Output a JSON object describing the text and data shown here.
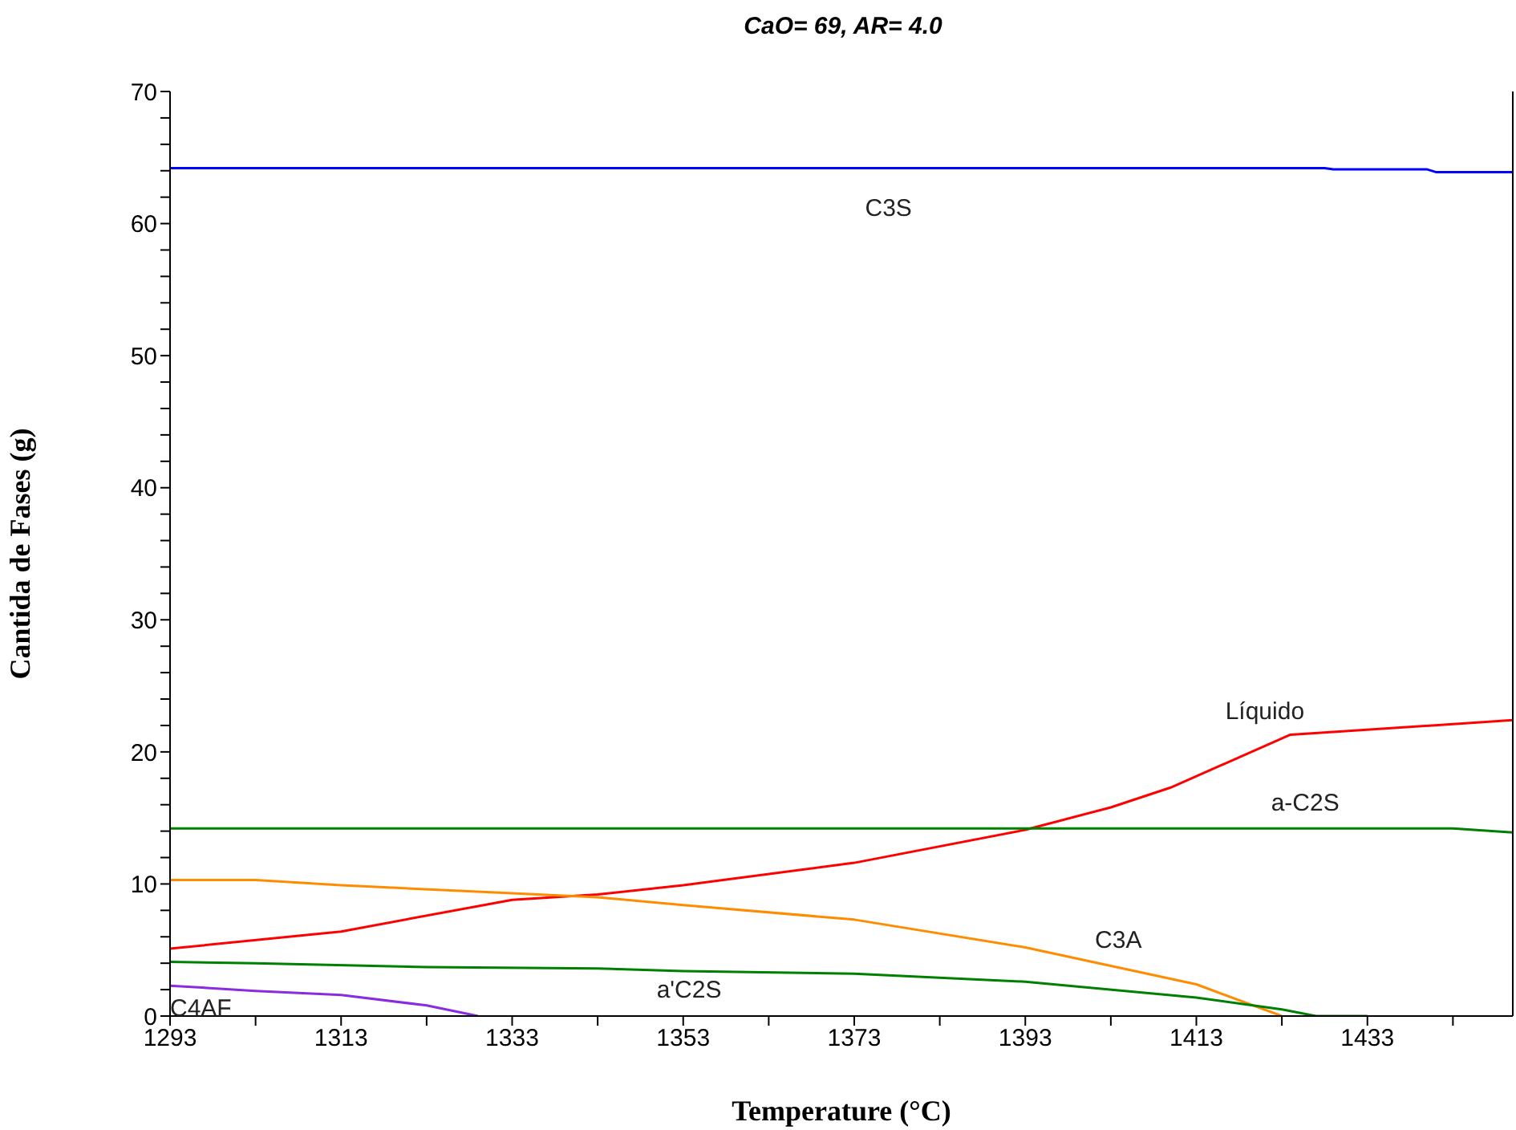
{
  "chart_data": {
    "type": "line",
    "title": "CaO= 69, AR= 4.0",
    "xlabel": "Temperature (°C)",
    "ylabel": "Cantida de Fases (g)",
    "xlim": [
      1293,
      1450
    ],
    "xticks": [
      1293,
      {
        "value": 1303,
        "label": null
      },
      1313,
      {
        "value": 1323,
        "label": null
      },
      1333,
      {
        "value": 1343,
        "label": null
      },
      1353,
      {
        "value": 1363,
        "label": null
      },
      1373,
      {
        "value": 1383,
        "label": null
      },
      1393,
      {
        "value": 1403,
        "label": null
      },
      1413,
      {
        "value": 1423,
        "label": null
      },
      1433,
      {
        "value": 1443,
        "label": null
      }
    ],
    "ylim": [
      0,
      70
    ],
    "yticks": [
      0,
      {
        "value": 2,
        "label": null
      },
      {
        "value": 4,
        "label": null
      },
      {
        "value": 6,
        "label": null
      },
      {
        "value": 8,
        "label": null
      },
      10,
      {
        "value": 12,
        "label": null
      },
      {
        "value": 14,
        "label": null
      },
      {
        "value": 16,
        "label": null
      },
      {
        "value": 18,
        "label": null
      },
      20,
      {
        "value": 22,
        "label": null
      },
      {
        "value": 24,
        "label": null
      },
      {
        "value": 26,
        "label": null
      },
      {
        "value": 28,
        "label": null
      },
      30,
      {
        "value": 32,
        "label": null
      },
      {
        "value": 34,
        "label": null
      },
      {
        "value": 36,
        "label": null
      },
      {
        "value": 38,
        "label": null
      },
      40,
      {
        "value": 42,
        "label": null
      },
      {
        "value": 44,
        "label": null
      },
      {
        "value": 46,
        "label": null
      },
      {
        "value": 48,
        "label": null
      },
      50,
      {
        "value": 52,
        "label": null
      },
      {
        "value": 54,
        "label": null
      },
      {
        "value": 56,
        "label": null
      },
      {
        "value": 58,
        "label": null
      },
      60,
      {
        "value": 62,
        "label": null
      },
      {
        "value": 64,
        "label": null
      },
      {
        "value": 66,
        "label": null
      },
      {
        "value": 68,
        "label": null
      },
      70
    ],
    "grid": false,
    "legend": false,
    "marker": "none",
    "line_style": "solid",
    "series": [
      {
        "name": "C3S",
        "color": "#0000ff",
        "x": [
          1293,
          1428,
          1429,
          1440,
          1441,
          1450
        ],
        "values": [
          64.2,
          64.2,
          64.1,
          64.1,
          63.9,
          63.9
        ]
      },
      {
        "name": "Líquido",
        "color": "#ff0000",
        "x": [
          1293,
          1313,
          1333,
          1343,
          1353,
          1373,
          1393,
          1403,
          1410,
          1424,
          1450
        ],
        "values": [
          5.1,
          6.4,
          8.8,
          9.2,
          9.9,
          11.6,
          14.1,
          15.8,
          17.3,
          21.3,
          22.4
        ]
      },
      {
        "name": "a-C2S",
        "color": "#008000",
        "x": [
          1293,
          1443,
          1450
        ],
        "values": [
          14.2,
          14.2,
          13.9
        ]
      },
      {
        "name": "C3A",
        "color": "#ff8c00",
        "x": [
          1293,
          1303,
          1313,
          1333,
          1343,
          1353,
          1373,
          1393,
          1413,
          1423
        ],
        "values": [
          10.3,
          10.3,
          9.9,
          9.3,
          9.0,
          8.4,
          7.3,
          5.2,
          2.4,
          0
        ]
      },
      {
        "name": "a'C2S",
        "color": "#008000",
        "x": [
          1293,
          1303,
          1323,
          1343,
          1353,
          1373,
          1393,
          1413,
          1423,
          1427,
          1433
        ],
        "values": [
          4.1,
          4.0,
          3.7,
          3.6,
          3.4,
          3.2,
          2.6,
          1.4,
          0.5,
          0,
          0
        ]
      },
      {
        "name": "C4AF",
        "color": "#8a2be2",
        "x": [
          1293,
          1303,
          1313,
          1323,
          1329
        ],
        "values": [
          2.3,
          1.9,
          1.6,
          0.8,
          0
        ]
      }
    ]
  }
}
